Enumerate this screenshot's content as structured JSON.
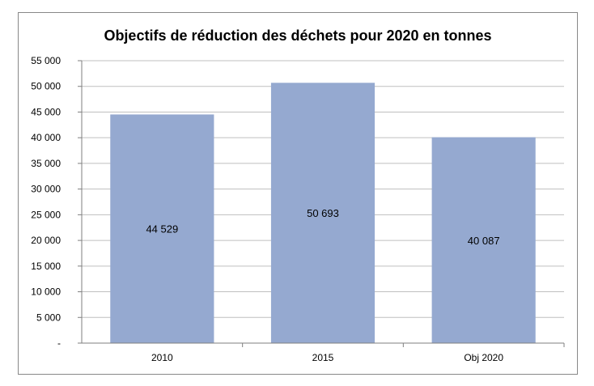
{
  "chart_data": {
    "type": "bar",
    "title": "Objectifs de réduction des déchets pour 2020 en tonnes",
    "categories": [
      "2010",
      "2015",
      "Obj 2020"
    ],
    "values": [
      44529,
      50693,
      40087
    ],
    "data_labels": [
      "44 529",
      "50 693",
      "40 087"
    ],
    "yticks": [
      {
        "value": 0,
        "label": "-"
      },
      {
        "value": 5000,
        "label": "5 000"
      },
      {
        "value": 10000,
        "label": "10 000"
      },
      {
        "value": 15000,
        "label": "15 000"
      },
      {
        "value": 20000,
        "label": "20 000"
      },
      {
        "value": 25000,
        "label": "25 000"
      },
      {
        "value": 30000,
        "label": "30 000"
      },
      {
        "value": 35000,
        "label": "35 000"
      },
      {
        "value": 40000,
        "label": "40 000"
      },
      {
        "value": 45000,
        "label": "45 000"
      },
      {
        "value": 50000,
        "label": "50 000"
      },
      {
        "value": 55000,
        "label": "55 000"
      }
    ],
    "ylim": [
      0,
      55000
    ],
    "grid": true,
    "legend": "none",
    "bar_color": "#95A9D0",
    "grid_color": "#BFBFBF"
  }
}
